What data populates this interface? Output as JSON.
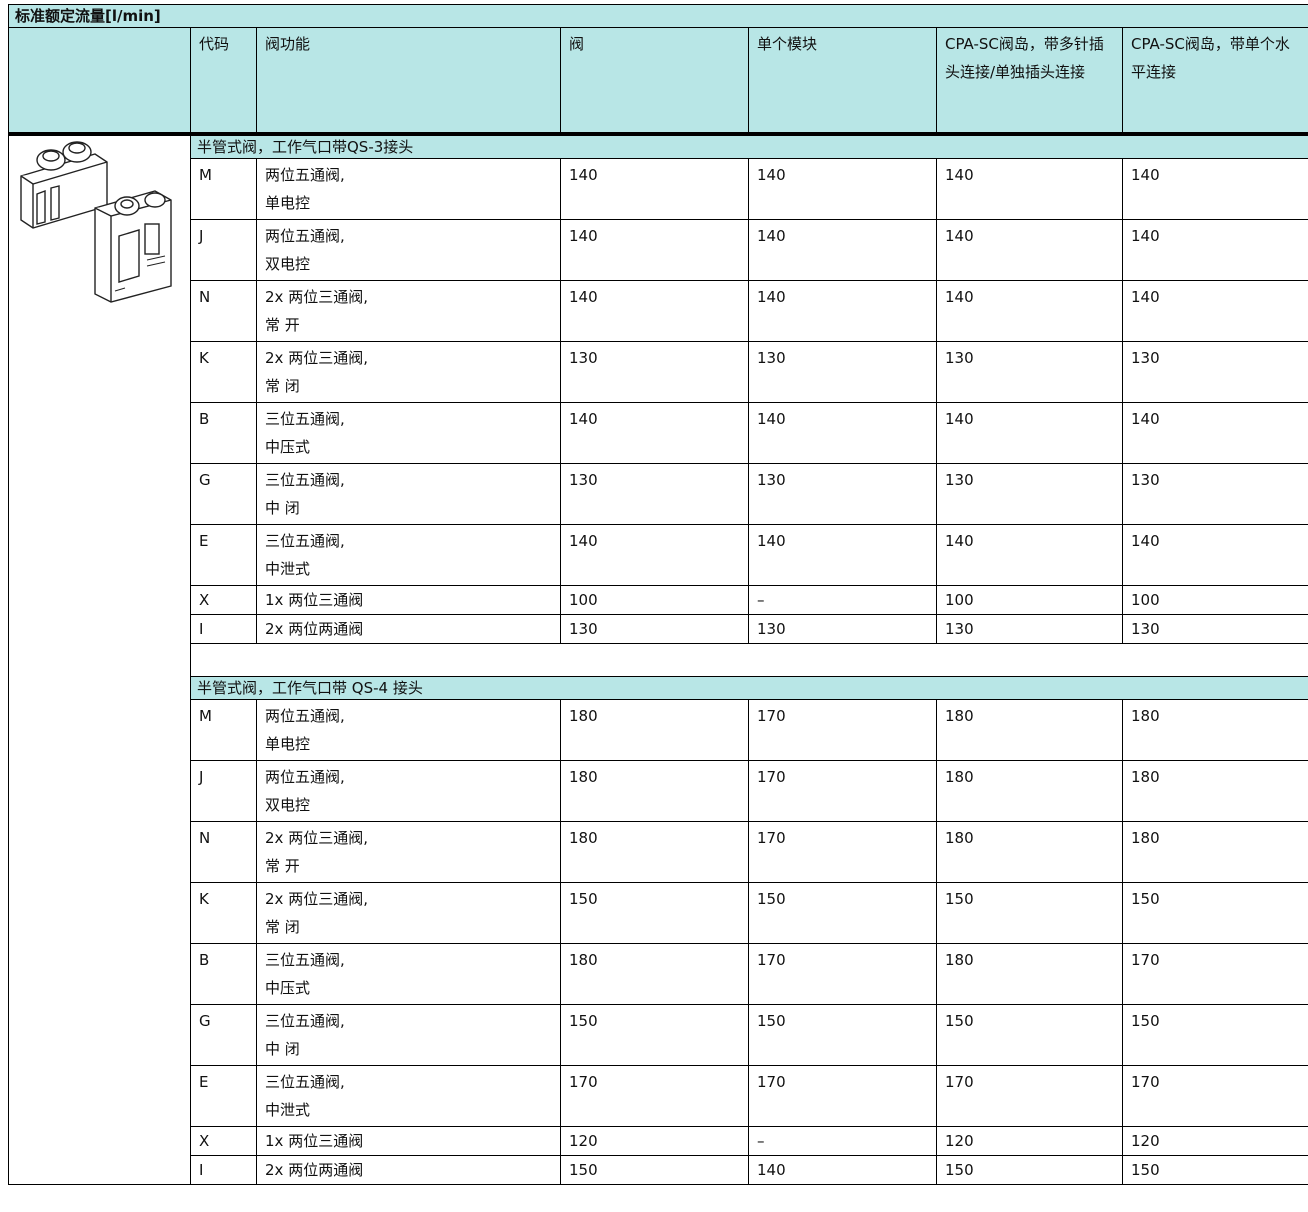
{
  "header": {
    "title": "标准额定流量[l/min]",
    "columns": [
      "代码",
      "阀功能",
      "阀",
      "单个模块",
      "CPA-SC阀岛，带多针插头连接/单独插头连接",
      "CPA-SC阀岛，带单个水平连接"
    ]
  },
  "sections": [
    {
      "title": "半管式阀，工作气口带QS-3接头",
      "rows": [
        {
          "code": "M",
          "function": [
            "两位五通阀,",
            "单电控"
          ],
          "values": [
            140,
            140,
            140,
            140
          ]
        },
        {
          "code": "J",
          "function": [
            "两位五通阀,",
            "双电控"
          ],
          "values": [
            140,
            140,
            140,
            140
          ]
        },
        {
          "code": "N",
          "function": [
            "2x 两位三通阀,",
            "常 开"
          ],
          "values": [
            140,
            140,
            140,
            140
          ]
        },
        {
          "code": "K",
          "function": [
            "2x 两位三通阀,",
            "常 闭"
          ],
          "values": [
            130,
            130,
            130,
            130
          ]
        },
        {
          "code": "B",
          "function": [
            "三位五通阀,",
            "中压式"
          ],
          "values": [
            140,
            140,
            140,
            140
          ]
        },
        {
          "code": "G",
          "function": [
            "三位五通阀,",
            "中 闭"
          ],
          "values": [
            130,
            130,
            130,
            130
          ]
        },
        {
          "code": "E",
          "function": [
            "三位五通阀,",
            "中泄式"
          ],
          "values": [
            140,
            140,
            140,
            140
          ]
        },
        {
          "code": "X",
          "function": [
            "1x 两位三通阀"
          ],
          "values": [
            100,
            "–",
            100,
            100
          ]
        },
        {
          "code": "I",
          "function": [
            "2x 两位两通阀"
          ],
          "values": [
            130,
            130,
            130,
            130
          ]
        }
      ]
    },
    {
      "title": "半管式阀，工作气口带 QS-4 接头",
      "rows": [
        {
          "code": "M",
          "function": [
            "两位五通阀,",
            "单电控"
          ],
          "values": [
            180,
            170,
            180,
            180
          ]
        },
        {
          "code": "J",
          "function": [
            "两位五通阀,",
            "双电控"
          ],
          "values": [
            180,
            170,
            180,
            180
          ]
        },
        {
          "code": "N",
          "function": [
            "2x 两位三通阀,",
            "常 开"
          ],
          "values": [
            180,
            170,
            180,
            180
          ]
        },
        {
          "code": "K",
          "function": [
            "2x 两位三通阀,",
            "常 闭"
          ],
          "values": [
            150,
            150,
            150,
            150
          ]
        },
        {
          "code": "B",
          "function": [
            "三位五通阀,",
            "中压式"
          ],
          "values": [
            180,
            170,
            180,
            170
          ]
        },
        {
          "code": "G",
          "function": [
            "三位五通阀,",
            "中 闭"
          ],
          "values": [
            150,
            150,
            150,
            150
          ]
        },
        {
          "code": "E",
          "function": [
            "三位五通阀,",
            "中泄式"
          ],
          "values": [
            170,
            170,
            170,
            170
          ]
        },
        {
          "code": "X",
          "function": [
            "1x 两位三通阀"
          ],
          "values": [
            120,
            "–",
            120,
            120
          ]
        },
        {
          "code": "I",
          "function": [
            "2x 两位两通阀"
          ],
          "values": [
            150,
            140,
            150,
            150
          ]
        }
      ]
    }
  ]
}
